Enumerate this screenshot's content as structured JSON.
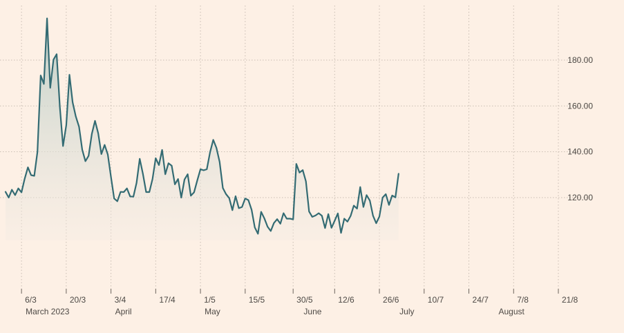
{
  "chart_data": {
    "type": "area",
    "title": "",
    "xlabel": "",
    "ylabel": "",
    "ylim": [
      80,
      200
    ],
    "y_ticks": [
      120,
      140,
      160,
      180
    ],
    "y_tick_labels": [
      "120.00",
      "140.00",
      "160.00",
      "180.00"
    ],
    "axis_position": "right",
    "grid": "dotted",
    "colors": {
      "background": "#fdf0e5",
      "line": "#336b73",
      "area_top": "#bfcfc7",
      "grid": "#c9bdb3",
      "text": "#4d4945"
    },
    "x_start": "2023-03-01",
    "x_end": "2023-08-21",
    "day_ticks": [
      {
        "date": "2023-03-06",
        "label": "6/3"
      },
      {
        "date": "2023-03-20",
        "label": "20/3"
      },
      {
        "date": "2023-04-03",
        "label": "3/4"
      },
      {
        "date": "2023-04-17",
        "label": "17/4"
      },
      {
        "date": "2023-05-01",
        "label": "1/5"
      },
      {
        "date": "2023-05-15",
        "label": "15/5"
      },
      {
        "date": "2023-05-30",
        "label": "30/5"
      },
      {
        "date": "2023-06-12",
        "label": "12/6"
      },
      {
        "date": "2023-06-26",
        "label": "26/6"
      },
      {
        "date": "2023-07-10",
        "label": "10/7"
      },
      {
        "date": "2023-07-24",
        "label": "24/7"
      },
      {
        "date": "2023-08-07",
        "label": "7/8"
      },
      {
        "date": "2023-08-21",
        "label": "21/8"
      }
    ],
    "month_labels": [
      {
        "date": "2023-03-06",
        "label": "March 2023"
      },
      {
        "date": "2023-04-03",
        "label": "April"
      },
      {
        "date": "2023-05-01",
        "label": "May"
      },
      {
        "date": "2023-06-01",
        "label": "June"
      },
      {
        "date": "2023-07-01",
        "label": "July"
      },
      {
        "date": "2023-08-01",
        "label": "August"
      }
    ],
    "series": [
      {
        "points": [
          [
            "2023-03-01",
            122.5
          ],
          [
            "2023-03-02",
            120.0
          ],
          [
            "2023-03-03",
            123.4
          ],
          [
            "2023-03-04",
            121.1
          ],
          [
            "2023-03-05",
            124.0
          ],
          [
            "2023-03-06",
            122.3
          ],
          [
            "2023-03-07",
            128.2
          ],
          [
            "2023-03-08",
            133.2
          ],
          [
            "2023-03-09",
            129.8
          ],
          [
            "2023-03-10",
            129.5
          ],
          [
            "2023-03-11",
            140.0
          ],
          [
            "2023-03-12",
            173.3
          ],
          [
            "2023-03-13",
            169.6
          ],
          [
            "2023-03-14",
            198.2
          ],
          [
            "2023-03-15",
            167.9
          ],
          [
            "2023-03-16",
            180.2
          ],
          [
            "2023-03-17",
            182.6
          ],
          [
            "2023-03-18",
            159.6
          ],
          [
            "2023-03-19",
            142.5
          ],
          [
            "2023-03-20",
            151.6
          ],
          [
            "2023-03-21",
            173.6
          ],
          [
            "2023-03-22",
            161.6
          ],
          [
            "2023-03-23",
            155.4
          ],
          [
            "2023-03-24",
            150.9
          ],
          [
            "2023-03-25",
            140.9
          ],
          [
            "2023-03-26",
            135.9
          ],
          [
            "2023-03-27",
            138.2
          ],
          [
            "2023-03-28",
            147.8
          ],
          [
            "2023-03-29",
            153.5
          ],
          [
            "2023-03-30",
            148.1
          ],
          [
            "2023-03-31",
            139.0
          ],
          [
            "2023-04-01",
            143.0
          ],
          [
            "2023-04-02",
            138.8
          ],
          [
            "2023-04-03",
            129.0
          ],
          [
            "2023-04-04",
            119.6
          ],
          [
            "2023-04-05",
            118.4
          ],
          [
            "2023-04-06",
            122.5
          ],
          [
            "2023-04-07",
            122.4
          ],
          [
            "2023-04-08",
            124.0
          ],
          [
            "2023-04-09",
            120.5
          ],
          [
            "2023-04-10",
            120.4
          ],
          [
            "2023-04-11",
            126.4
          ],
          [
            "2023-04-12",
            136.9
          ],
          [
            "2023-04-13",
            130.4
          ],
          [
            "2023-04-14",
            122.4
          ],
          [
            "2023-04-15",
            122.4
          ],
          [
            "2023-04-16",
            128.1
          ],
          [
            "2023-04-17",
            137.2
          ],
          [
            "2023-04-18",
            134.2
          ],
          [
            "2023-04-19",
            140.8
          ],
          [
            "2023-04-20",
            130.2
          ],
          [
            "2023-04-21",
            135.0
          ],
          [
            "2023-04-22",
            133.9
          ],
          [
            "2023-04-23",
            125.8
          ],
          [
            "2023-04-24",
            128.1
          ],
          [
            "2023-04-25",
            120.0
          ],
          [
            "2023-04-26",
            127.9
          ],
          [
            "2023-04-27",
            130.2
          ],
          [
            "2023-04-28",
            120.8
          ],
          [
            "2023-04-29",
            122.3
          ],
          [
            "2023-04-30",
            127.5
          ],
          [
            "2023-05-01",
            132.4
          ],
          [
            "2023-05-02",
            131.9
          ],
          [
            "2023-05-03",
            132.4
          ],
          [
            "2023-05-04",
            139.8
          ],
          [
            "2023-05-05",
            145.2
          ],
          [
            "2023-05-06",
            141.7
          ],
          [
            "2023-05-07",
            135.6
          ],
          [
            "2023-05-08",
            124.2
          ],
          [
            "2023-05-09",
            121.5
          ],
          [
            "2023-05-10",
            119.8
          ],
          [
            "2023-05-11",
            114.5
          ],
          [
            "2023-05-12",
            120.6
          ],
          [
            "2023-05-13",
            115.4
          ],
          [
            "2023-05-14",
            115.9
          ],
          [
            "2023-05-15",
            119.6
          ],
          [
            "2023-05-16",
            118.9
          ],
          [
            "2023-05-17",
            114.7
          ],
          [
            "2023-05-18",
            107.0
          ],
          [
            "2023-05-19",
            104.2
          ],
          [
            "2023-05-20",
            113.8
          ],
          [
            "2023-05-21",
            110.9
          ],
          [
            "2023-05-22",
            107.3
          ],
          [
            "2023-05-23",
            105.4
          ],
          [
            "2023-05-24",
            108.9
          ],
          [
            "2023-05-25",
            110.6
          ],
          [
            "2023-05-26",
            108.6
          ],
          [
            "2023-05-27",
            113.2
          ],
          [
            "2023-05-28",
            110.8
          ],
          [
            "2023-05-29",
            110.8
          ],
          [
            "2023-05-30",
            110.5
          ],
          [
            "2023-05-31",
            134.7
          ],
          [
            "2023-06-01",
            130.9
          ],
          [
            "2023-06-02",
            132.0
          ],
          [
            "2023-06-03",
            127.1
          ],
          [
            "2023-06-04",
            113.9
          ],
          [
            "2023-06-05",
            111.6
          ],
          [
            "2023-06-06",
            112.2
          ],
          [
            "2023-06-07",
            113.2
          ],
          [
            "2023-06-08",
            112.1
          ],
          [
            "2023-06-09",
            106.7
          ],
          [
            "2023-06-10",
            112.8
          ],
          [
            "2023-06-11",
            106.8
          ],
          [
            "2023-06-12",
            109.9
          ],
          [
            "2023-06-13",
            113.1
          ],
          [
            "2023-06-14",
            104.6
          ],
          [
            "2023-06-15",
            110.8
          ],
          [
            "2023-06-16",
            109.5
          ],
          [
            "2023-06-17",
            112.0
          ],
          [
            "2023-06-18",
            116.5
          ],
          [
            "2023-06-19",
            115.2
          ],
          [
            "2023-06-20",
            124.6
          ],
          [
            "2023-06-21",
            115.9
          ],
          [
            "2023-06-22",
            121.1
          ],
          [
            "2023-06-23",
            118.7
          ],
          [
            "2023-06-24",
            112.1
          ],
          [
            "2023-06-25",
            108.8
          ],
          [
            "2023-06-26",
            111.7
          ],
          [
            "2023-06-27",
            120.0
          ],
          [
            "2023-06-28",
            121.5
          ],
          [
            "2023-06-29",
            116.8
          ],
          [
            "2023-06-30",
            120.9
          ],
          [
            "2023-07-01",
            120.1
          ],
          [
            "2023-07-02",
            130.4
          ]
        ]
      }
    ]
  }
}
